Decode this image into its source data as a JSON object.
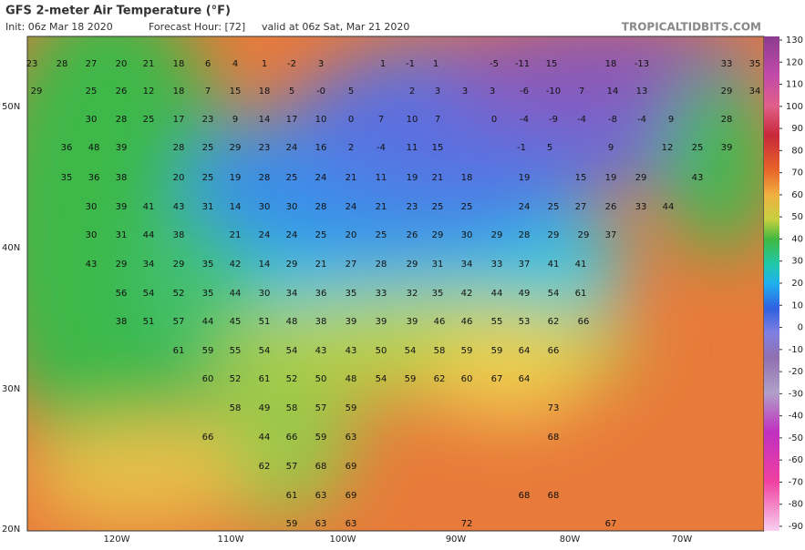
{
  "header": {
    "title": "GFS 2-meter Air Temperature (°F)",
    "init": "Init: 06z Mar 18 2020",
    "forecast_hour": "Forecast Hour: [72]",
    "valid": "valid at 06z Sat, Mar 21 2020",
    "source": "TROPICALTIDBITS.COM"
  },
  "map": {
    "lat_labels": [
      "50N",
      "40N",
      "30N",
      "20N"
    ],
    "lon_labels": [
      "120W",
      "110W",
      "100W",
      "90W",
      "80W",
      "70W"
    ],
    "rows": [
      [
        23,
        28,
        27,
        20,
        21,
        18,
        6,
        4,
        1,
        -2,
        3,
        1,
        -1,
        1,
        -5,
        -11,
        15,
        18,
        -13,
        33,
        35
      ],
      [
        29,
        25,
        26,
        12,
        18,
        7,
        15,
        18,
        5,
        "-0",
        5,
        2,
        3,
        3,
        3,
        -6,
        -10,
        7,
        14,
        13,
        29,
        34
      ],
      [
        30,
        28,
        25,
        17,
        23,
        9,
        14,
        17,
        10,
        0,
        7,
        10,
        7,
        0,
        -4,
        -9,
        -4,
        -8,
        -4,
        9,
        28
      ],
      [
        36,
        48,
        39,
        28,
        25,
        29,
        23,
        24,
        16,
        2,
        -4,
        11,
        15,
        -1,
        5,
        9,
        12,
        25,
        39
      ],
      [
        35,
        36,
        38,
        20,
        25,
        19,
        28,
        25,
        24,
        21,
        11,
        19,
        21,
        18,
        19,
        15,
        19,
        29,
        43
      ],
      [
        30,
        39,
        41,
        43,
        31,
        14,
        30,
        30,
        28,
        24,
        21,
        23,
        25,
        25,
        24,
        25,
        27,
        26,
        33,
        44
      ],
      [
        30,
        31,
        44,
        38,
        21,
        24,
        24,
        25,
        20,
        25,
        26,
        29,
        30,
        29,
        28,
        29,
        29,
        37
      ],
      [
        43,
        29,
        34,
        29,
        35,
        42,
        14,
        29,
        21,
        27,
        28,
        29,
        31,
        34,
        33,
        37,
        41,
        41
      ],
      [
        56,
        54,
        52,
        35,
        44,
        30,
        34,
        36,
        35,
        33,
        32,
        35,
        42,
        44,
        49,
        54,
        61
      ],
      [
        38,
        51,
        57,
        44,
        45,
        51,
        48,
        38,
        39,
        39,
        39,
        46,
        46,
        55,
        53,
        62,
        66
      ],
      [
        61,
        59,
        55,
        54,
        54,
        43,
        43,
        50,
        54,
        58,
        59,
        59,
        64,
        66
      ],
      [
        60,
        52,
        61,
        52,
        50,
        48,
        54,
        59,
        62,
        60,
        67,
        64
      ],
      [
        58,
        49,
        58,
        57,
        59,
        73
      ],
      [
        66,
        44,
        66,
        59,
        63,
        68
      ],
      [
        62,
        57,
        68,
        69
      ],
      [
        61,
        63,
        69,
        68,
        68
      ],
      [
        59,
        63,
        63,
        72,
        67
      ]
    ]
  },
  "colorbar": {
    "ticks": [
      130,
      120,
      110,
      100,
      90,
      80,
      70,
      60,
      50,
      40,
      30,
      20,
      10,
      0,
      -10,
      -20,
      -30,
      -40,
      -50,
      -60,
      -70,
      -80,
      -90
    ]
  }
}
